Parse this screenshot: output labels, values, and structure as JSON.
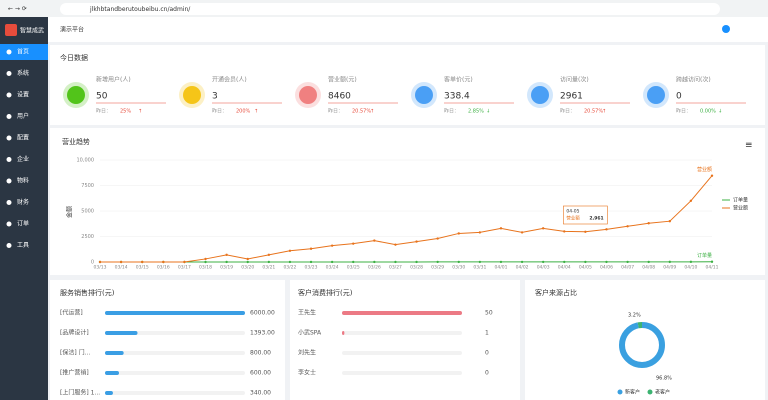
{
  "browser": {
    "url": "jlkhbtandberutoubeibu.cn/admin/"
  },
  "sidebar": {
    "logo": "智慧成武",
    "menu": [
      "首页",
      "系统",
      "设置",
      "用户",
      "配置",
      "企业",
      "物料",
      "财务",
      "订单",
      "工具"
    ]
  },
  "header": {
    "tab": "演示平台"
  },
  "today": {
    "title": "今日数据",
    "compare": "昨日：",
    "cards": [
      {
        "label": "新增用户(人)",
        "value": "50",
        "change": "25%",
        "trend": "↑",
        "color": "#52c41a"
      },
      {
        "label": "开通会员(人)",
        "value": "3",
        "change": "200%",
        "trend": "↑",
        "color": "#f5c518"
      },
      {
        "label": "营业额(元)",
        "value": "8460",
        "change": "20.57%",
        "trend": "↑",
        "color": "#f08080"
      },
      {
        "label": "客单价(元)",
        "value": "338.4",
        "change": "2.85%",
        "trend": "↓",
        "color": "#4a9ff5"
      },
      {
        "label": "访问量(次)",
        "value": "2961",
        "change": "20.57%",
        "trend": "↑",
        "color": "#4a9ff5"
      },
      {
        "label": "跨越访问(次)",
        "value": "0",
        "change": "0.00%",
        "trend": "↓",
        "color": "#4a9ff5"
      }
    ]
  },
  "chart": {
    "type": "line",
    "title": "营业趋势",
    "ylabel": "金额",
    "categories": [
      "03/13",
      "03/14",
      "03/15",
      "03/16",
      "03/17",
      "03/18",
      "03/19",
      "03/20",
      "03/21",
      "03/22",
      "03/23",
      "03/24",
      "03/25",
      "03/26",
      "03/27",
      "03/28",
      "03/29",
      "03/30",
      "03/31",
      "04/01",
      "04/02",
      "04/03",
      "04/04",
      "04/05",
      "04/06",
      "04/07",
      "04/08",
      "04/09",
      "04/10",
      "04/11"
    ],
    "series": [
      {
        "name": "订单量",
        "color": "#3cb043",
        "values": [
          0,
          0,
          0,
          0,
          0,
          1,
          2,
          1,
          2,
          3,
          4,
          4,
          5,
          6,
          5,
          6,
          7,
          8,
          8,
          9,
          8,
          9,
          8,
          8,
          9,
          10,
          11,
          12,
          18,
          25
        ]
      },
      {
        "name": "营业额",
        "color": "#e8731c",
        "values": [
          0,
          0,
          0,
          0,
          0,
          300,
          700,
          300,
          700,
          1100,
          1300,
          1600,
          1800,
          2100,
          1700,
          2000,
          2300,
          2800,
          2900,
          3300,
          2900,
          3300,
          3000,
          2961,
          3200,
          3500,
          3800,
          4000,
          6000,
          8460
        ]
      }
    ],
    "ylim": [
      0,
      10000
    ],
    "yticks": [
      0,
      2500,
      5000,
      7500,
      {
        "value": 10000,
        "label": "10,000"
      }
    ],
    "tooltip": {
      "date": "04-05",
      "series": "营业额",
      "value_label": "2,961"
    }
  },
  "rank_service": {
    "title": "服务销售排行(元)",
    "rows": [
      {
        "name": "[代运营]",
        "value": 6000,
        "value_label": "6000.00"
      },
      {
        "name": "[品牌设计]",
        "value": 1393,
        "value_label": "1393.00"
      },
      {
        "name": "[保洁] 门...",
        "value": 800,
        "value_label": "800.00"
      },
      {
        "name": "[推广营销]",
        "value": 600,
        "value_label": "600.00"
      },
      {
        "name": "[上门服务] 1...",
        "value": 340,
        "value_label": "340.00"
      }
    ]
  },
  "rank_customer": {
    "title": "客户消费排行(元)",
    "rows": [
      {
        "name": "王先生",
        "value": 50,
        "value_label": "50"
      },
      {
        "name": "小武SPA",
        "value": 1,
        "value_label": "1"
      },
      {
        "name": "刘先生",
        "value": 0,
        "value_label": "0"
      },
      {
        "name": "李女士",
        "value": 0,
        "value_label": "0"
      }
    ]
  },
  "source": {
    "title": "客户来源占比",
    "slices": [
      {
        "name": "新客户",
        "value": 96.8,
        "label": "96.8%",
        "color": "#3aa0e0"
      },
      {
        "name": "老客户",
        "value": 3.2,
        "label": "3.2%",
        "color": "#3cb371"
      }
    ]
  }
}
